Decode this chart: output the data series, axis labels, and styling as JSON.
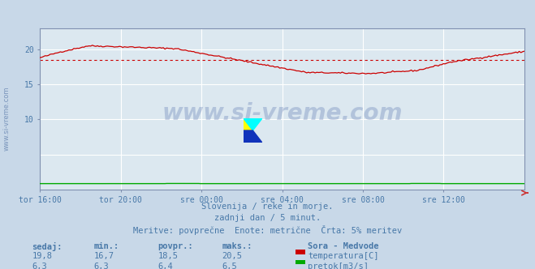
{
  "title": "Sora - Medvode",
  "bg_color": "#c8d8e8",
  "plot_bg_color": "#dce8f0",
  "grid_color": "#ffffff",
  "title_color": "#4848cc",
  "axis_label_color": "#4878a8",
  "text_color": "#4878a8",
  "xlabel_ticks": [
    "tor 16:00",
    "tor 20:00",
    "sre 00:00",
    "sre 04:00",
    "sre 08:00",
    "sre 12:00"
  ],
  "ylim": [
    0,
    23
  ],
  "yticks": [
    10,
    15,
    20
  ],
  "temp_color": "#cc0000",
  "flow_color": "#00aa00",
  "avg_line_color": "#cc0000",
  "avg_value": 18.5,
  "watermark_text": "www.si-vreme.com",
  "watermark_color": "#3858a0",
  "watermark_alpha": 0.25,
  "subtitle1": "Slovenija / reke in morje.",
  "subtitle2": "zadnji dan / 5 minut.",
  "subtitle3": "Meritve: povprečne  Enote: metrične  Črta: 5% meritev",
  "legend_title": "Sora - Medvode",
  "stat_headers": [
    "sedaj:",
    "min.:",
    "povpr.:",
    "maks.:"
  ],
  "temp_stats": [
    "19,8",
    "16,7",
    "18,5",
    "20,5"
  ],
  "flow_stats": [
    "6,3",
    "6,3",
    "6,4",
    "6,5"
  ],
  "temp_label": "temperatura[C]",
  "flow_label": "pretok[m3/s]",
  "n_points": 288,
  "flow_scale_max": 25,
  "flow_actual_max": 6.5,
  "flow_actual_vals": 6.35
}
